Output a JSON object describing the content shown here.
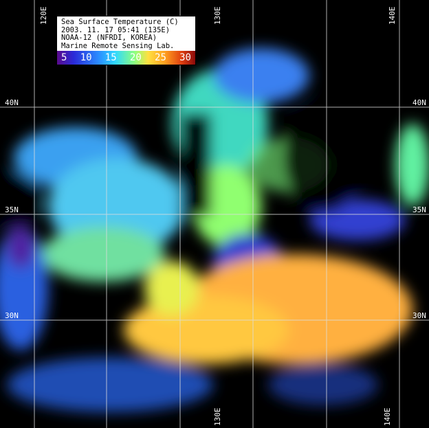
{
  "legend": {
    "title": "Sea Surface Temperature (C)",
    "datetime": "2003. 11. 17  05:41 (135E)",
    "satellite": "NOAA-12 (NFRDI, KOREA)",
    "lab": "Marine Remote Sensing Lab.",
    "scale_ticks": [
      "5",
      "10",
      "15",
      "20",
      "25",
      "30"
    ],
    "scale_colors": [
      "#5a0a8c",
      "#2a2ad8",
      "#2b8cff",
      "#30d8ff",
      "#8cff80",
      "#ffe040",
      "#ffa020",
      "#e04010",
      "#8a0a0a"
    ]
  },
  "grid": {
    "top_labels": [
      "120E",
      "130E",
      "140E"
    ],
    "bottom_labels": [
      "130E",
      "140E"
    ],
    "left_labels": [
      "40N",
      "35N",
      "30N"
    ],
    "right_labels": [
      "40N",
      "35N",
      "30N"
    ]
  }
}
